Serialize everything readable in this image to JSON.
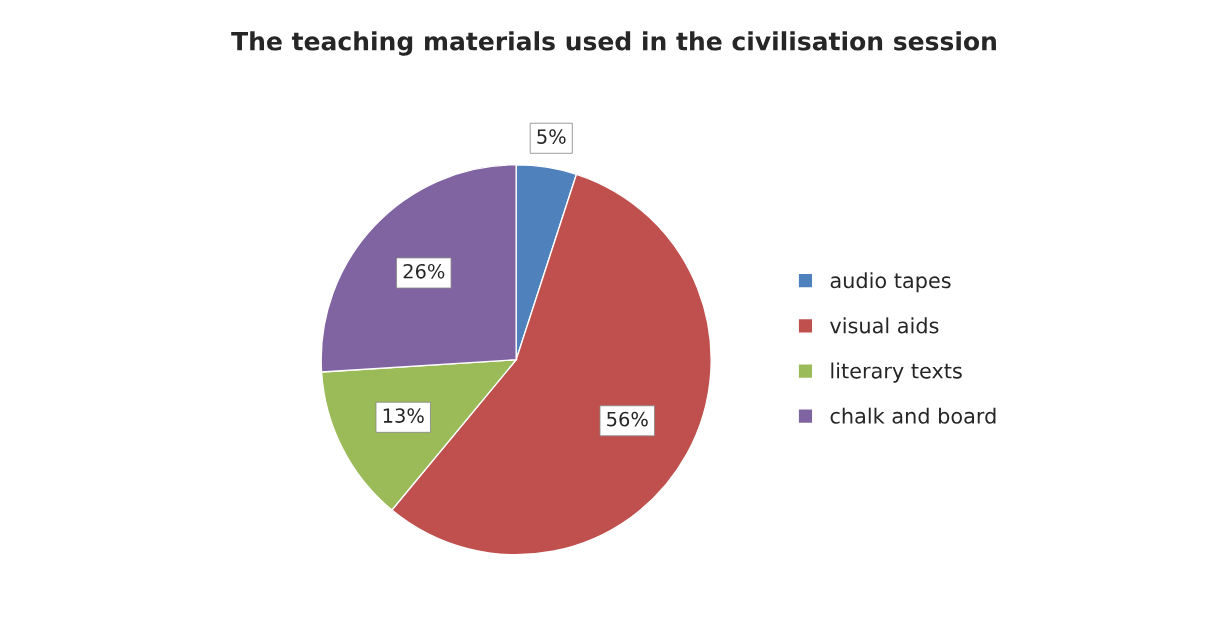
{
  "chart_data": {
    "type": "pie",
    "title": "The teaching materials used in the civilisation session",
    "categories": [
      "audio tapes",
      "visual aids",
      "literary texts",
      "chalk and board"
    ],
    "values": [
      5,
      56,
      13,
      26
    ],
    "colors": [
      "#4f81bd",
      "#c0504d",
      "#9bbb59",
      "#8064a2"
    ],
    "value_labels": [
      "5%",
      "56%",
      "13%",
      "26%"
    ],
    "legend": "right"
  }
}
